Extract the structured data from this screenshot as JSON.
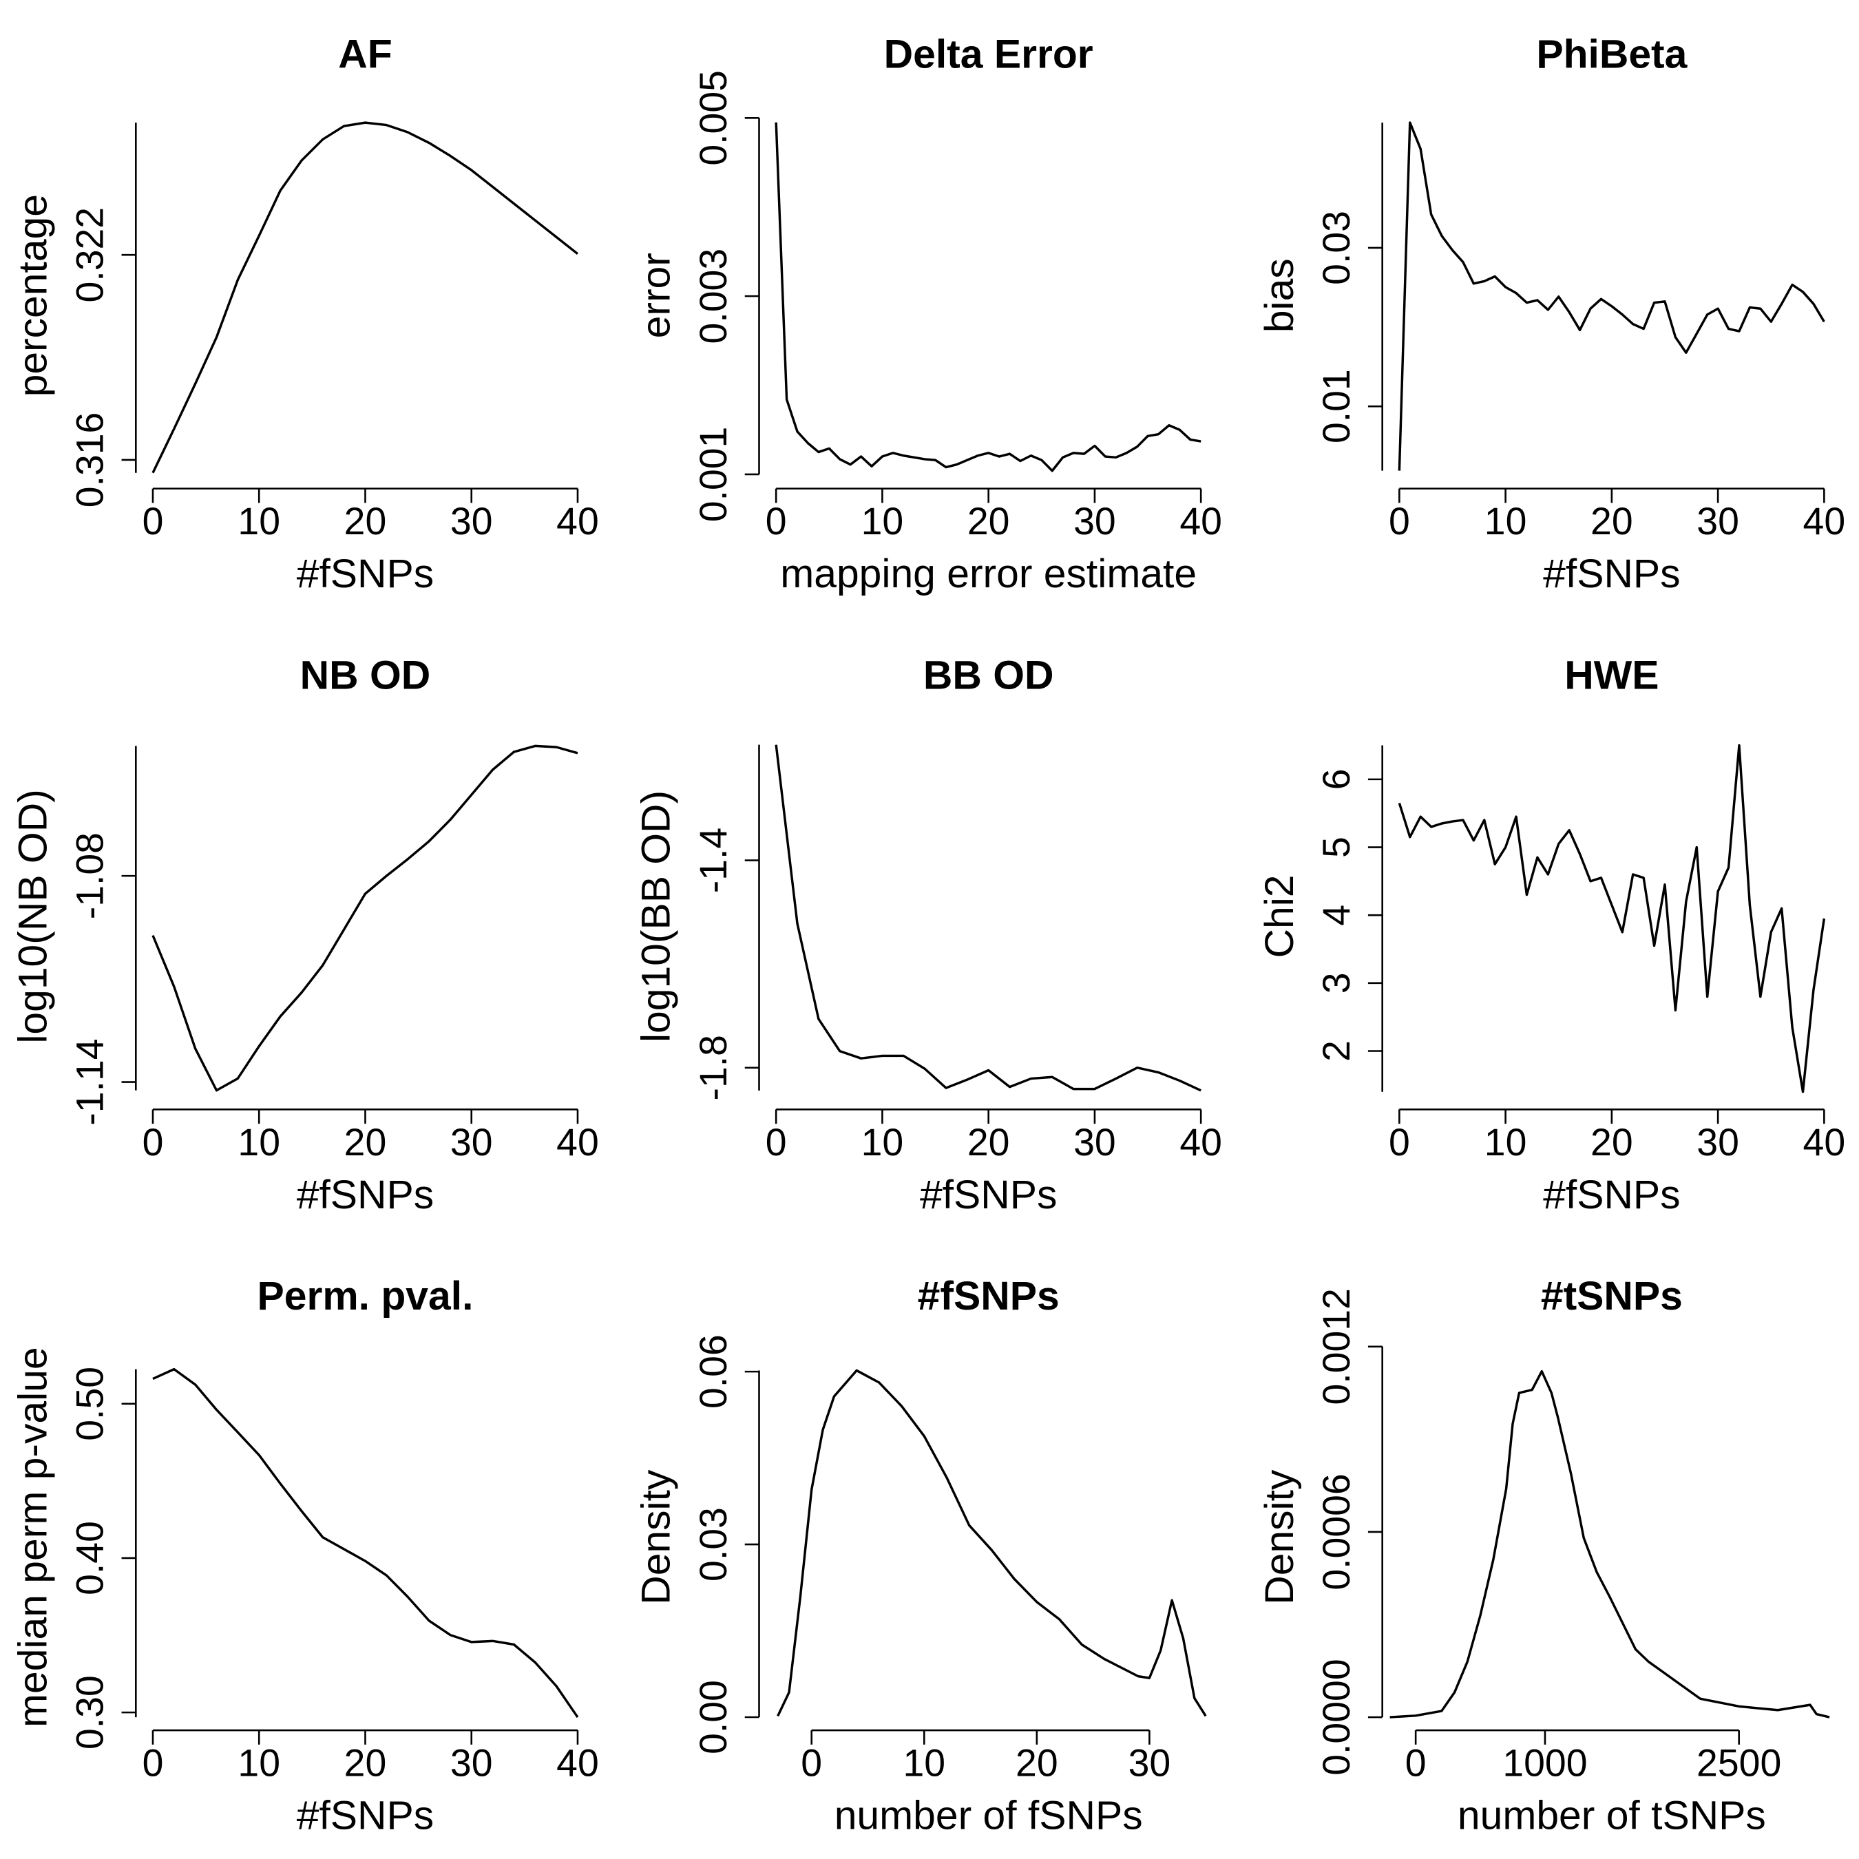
{
  "chart_data": [
    {
      "type": "line",
      "title": "AF",
      "x_label": "#fSNPs",
      "y_label": "percentage",
      "color": "#000000",
      "x": [
        0,
        2,
        4,
        6,
        8,
        10,
        12,
        14,
        16,
        18,
        20,
        22,
        24,
        26,
        28,
        30,
        32,
        34,
        36,
        38,
        40
      ],
      "values": [
        0.31562,
        0.31691,
        0.31823,
        0.31959,
        0.32127,
        0.32256,
        0.32388,
        0.32476,
        0.32538,
        0.32577,
        0.32587,
        0.3258,
        0.32559,
        0.32528,
        0.3249,
        0.32448,
        0.32399,
        0.3235,
        0.32301,
        0.32252,
        0.32203
      ],
      "xlim": [
        -1.6,
        41.6
      ],
      "ylim": [
        0.31516,
        0.32646
      ],
      "xticks": [
        0,
        10,
        20,
        30,
        40
      ],
      "yticks": [
        0.316,
        0.322
      ]
    },
    {
      "type": "line",
      "title": "Delta Error",
      "x_label": "mapping error estimate",
      "y_label": "error",
      "color": "#000000",
      "x": [
        0,
        1,
        2,
        3,
        4,
        5,
        6,
        7,
        8,
        9,
        10,
        11,
        12,
        13,
        14,
        15,
        16,
        17,
        18,
        19,
        20,
        21,
        22,
        23,
        24,
        25,
        26,
        27,
        28,
        29,
        30,
        31,
        32,
        33,
        34,
        35,
        36,
        37,
        38,
        39,
        40
      ],
      "values": [
        0.00495,
        0.00184,
        0.00148,
        0.00135,
        0.00125,
        0.00129,
        0.00117,
        0.00111,
        0.0012,
        0.00109,
        0.0012,
        0.00124,
        0.00121,
        0.00119,
        0.00117,
        0.00116,
        0.00108,
        0.00111,
        0.00116,
        0.00121,
        0.00124,
        0.0012,
        0.00123,
        0.00115,
        0.00121,
        0.00116,
        0.00104,
        0.00119,
        0.00124,
        0.00123,
        0.00132,
        0.0012,
        0.00119,
        0.00124,
        0.00131,
        0.00143,
        0.00145,
        0.00155,
        0.0015,
        0.00139,
        0.00137
      ],
      "xlim": [
        -1.6,
        41.6
      ],
      "ylim": [
        0.00084,
        0.005174
      ],
      "xticks": [
        0,
        10,
        20,
        30,
        40
      ],
      "yticks": [
        0.001,
        0.003,
        0.005
      ]
    },
    {
      "type": "line",
      "title": "PhiBeta",
      "x_label": "#fSNPs",
      "y_label": "bias",
      "color": "#000000",
      "x": [
        0,
        1,
        2,
        3,
        4,
        5,
        6,
        7,
        8,
        9,
        10,
        11,
        12,
        13,
        14,
        15,
        16,
        17,
        18,
        19,
        20,
        21,
        22,
        23,
        24,
        25,
        26,
        27,
        28,
        29,
        30,
        31,
        32,
        33,
        34,
        35,
        36,
        37,
        38,
        39,
        40
      ],
      "values": [
        0.00188,
        0.0458,
        0.04248,
        0.03421,
        0.0315,
        0.0297,
        0.0282,
        0.02549,
        0.02579,
        0.02639,
        0.02504,
        0.02429,
        0.02308,
        0.02339,
        0.02218,
        0.02384,
        0.02188,
        0.01963,
        0.02233,
        0.02354,
        0.02263,
        0.02158,
        0.02038,
        0.01978,
        0.02308,
        0.02323,
        0.01872,
        0.01677,
        0.01917,
        0.02158,
        0.02233,
        0.01978,
        0.01948,
        0.02248,
        0.02233,
        0.02068,
        0.02293,
        0.02534,
        0.02444,
        0.02293,
        0.02068
      ],
      "xlim": [
        -1.6,
        41.6
      ],
      "ylim": [
        -0.00038,
        0.04834
      ],
      "xticks": [
        0,
        10,
        20,
        30,
        40
      ],
      "yticks": [
        0.01,
        0.03
      ]
    },
    {
      "type": "line",
      "title": "NB OD",
      "x_label": "#fSNPs",
      "y_label": "log10(NB OD)",
      "color": "#000000",
      "x": [
        0,
        2,
        4,
        6,
        8,
        10,
        12,
        14,
        16,
        18,
        20,
        22,
        24,
        26,
        28,
        30,
        32,
        34,
        36,
        38,
        40
      ],
      "values": [
        -1.09733,
        -1.11225,
        -1.13029,
        -1.14243,
        -1.13896,
        -1.12959,
        -1.12092,
        -1.11398,
        -1.10601,
        -1.0956,
        -1.08519,
        -1.08,
        -1.07513,
        -1.06993,
        -1.06368,
        -1.0564,
        -1.04911,
        -1.04391,
        -1.04218,
        -1.04252,
        -1.04426
      ],
      "xlim": [
        -1.6,
        41.6
      ],
      "ylim": [
        -1.14798,
        -1.0356
      ],
      "xticks": [
        0,
        10,
        20,
        30,
        40
      ],
      "yticks": [
        -1.14,
        -1.08
      ]
    },
    {
      "type": "line",
      "title": "BB OD",
      "x_label": "#fSNPs",
      "y_label": "log10(BB OD)",
      "color": "#000000",
      "x": [
        0,
        2,
        4,
        6,
        8,
        10,
        12,
        14,
        16,
        18,
        20,
        22,
        24,
        26,
        28,
        30,
        32,
        34,
        36,
        38,
        40
      ],
      "values": [
        -1.177,
        -1.522,
        -1.706,
        -1.768,
        -1.782,
        -1.777,
        -1.777,
        -1.802,
        -1.839,
        -1.823,
        -1.805,
        -1.837,
        -1.821,
        -1.818,
        -1.841,
        -1.841,
        -1.821,
        -1.8,
        -1.809,
        -1.825,
        -1.844
      ],
      "xlim": [
        -1.6,
        41.6
      ],
      "ylim": [
        -1.8805,
        -1.1357
      ],
      "xticks": [
        0,
        10,
        20,
        30,
        40
      ],
      "yticks": [
        -1.8,
        -1.4
      ]
    },
    {
      "type": "line",
      "title": "HWE",
      "x_label": "#fSNPs",
      "y_label": "Chi2",
      "color": "#000000",
      "x": [
        0,
        1,
        2,
        3,
        4,
        5,
        6,
        7,
        8,
        9,
        10,
        11,
        12,
        13,
        14,
        15,
        16,
        17,
        18,
        19,
        20,
        21,
        22,
        23,
        24,
        25,
        26,
        27,
        28,
        29,
        30,
        31,
        32,
        33,
        34,
        35,
        36,
        37,
        38,
        39,
        40
      ],
      "values": [
        5.65,
        5.15,
        5.45,
        5.3,
        5.35,
        5.38,
        5.4,
        5.1,
        5.4,
        4.75,
        5.0,
        5.45,
        4.3,
        4.85,
        4.6,
        5.05,
        5.25,
        4.9,
        4.5,
        4.55,
        4.15,
        3.75,
        4.6,
        4.55,
        3.55,
        4.45,
        2.6,
        4.2,
        5.0,
        2.8,
        4.35,
        4.7,
        6.5,
        4.15,
        2.8,
        3.75,
        4.1,
        2.35,
        1.4,
        2.9,
        3.95
      ],
      "xlim": [
        -1.6,
        41.6
      ],
      "ylim": [
        1.14,
        6.824
      ],
      "xticks": [
        0,
        10,
        20,
        30,
        40
      ],
      "yticks": [
        2,
        3,
        4,
        5,
        6
      ]
    },
    {
      "type": "line",
      "title": "Perm. pval.",
      "x_label": "#fSNPs",
      "y_label": "median perm p-value",
      "color": "#000000",
      "x": [
        0,
        2,
        4,
        6,
        8,
        10,
        12,
        14,
        16,
        18,
        20,
        22,
        24,
        26,
        28,
        30,
        32,
        34,
        36,
        38,
        40
      ],
      "values": [
        0.5162,
        0.5224,
        0.5124,
        0.4961,
        0.4815,
        0.4668,
        0.4483,
        0.4305,
        0.4135,
        0.4058,
        0.3981,
        0.3888,
        0.3749,
        0.3595,
        0.3502,
        0.3456,
        0.3463,
        0.344,
        0.3324,
        0.317,
        0.2969
      ],
      "xlim": [
        -1.6,
        41.6
      ],
      "ylim": [
        0.28842,
        0.53861
      ],
      "xticks": [
        0,
        10,
        20,
        30,
        40
      ],
      "yticks": [
        {
          "value": 0.3,
          "label": "0.30"
        },
        {
          "value": 0.4,
          "label": "0.40"
        },
        {
          "value": 0.5,
          "label": "0.50"
        }
      ]
    },
    {
      "type": "line",
      "title": "#fSNPs",
      "x_label": "number of fSNPs",
      "y_label": "Density",
      "color": "#000000",
      "x": [
        -3,
        -2,
        -1,
        0,
        1,
        2,
        4,
        6,
        8,
        10,
        12,
        14,
        16,
        18,
        20,
        22,
        24,
        26,
        28,
        29,
        30,
        31,
        32,
        33,
        34,
        35
      ],
      "values": [
        0.0002,
        0.0043,
        0.0209,
        0.0395,
        0.0499,
        0.0557,
        0.0602,
        0.0581,
        0.054,
        0.0488,
        0.0416,
        0.0333,
        0.029,
        0.024,
        0.02,
        0.017,
        0.0126,
        0.0101,
        0.0081,
        0.0071,
        0.0068,
        0.0116,
        0.0203,
        0.0137,
        0.0033,
        0.0002
      ],
      "xlim": [
        -4.66,
        36.08
      ],
      "ylim": [
        -0.00228,
        0.06476
      ],
      "xticks": [
        0,
        10,
        20,
        30
      ],
      "yticks": [
        {
          "value": 0,
          "label": "0.00"
        },
        0.03,
        0.06
      ]
    },
    {
      "type": "line",
      "title": "#tSNPs",
      "x_label": "number of tSNPs",
      "y_label": "Density",
      "color": "#000000",
      "x": [
        -200,
        0,
        200,
        300,
        400,
        500,
        600,
        700,
        750,
        800,
        900,
        975,
        1050,
        1100,
        1200,
        1300,
        1400,
        1500,
        1700,
        1800,
        2000,
        2200,
        2500,
        2800,
        3050,
        3100,
        3200
      ],
      "values": [
        0,
        5e-06,
        2e-05,
        8e-05,
        0.00018,
        0.00033,
        0.00051,
        0.00074,
        0.00095,
        0.00105,
        0.00106,
        0.00112,
        0.00105,
        0.00097,
        0.00079,
        0.00058,
        0.00047,
        0.00039,
        0.00022,
        0.00018,
        0.00012,
        6e-05,
        3.5e-05,
        2.3e-05,
        4e-05,
        1e-05,
        0
      ],
      "xlim": [
        -258,
        3290
      ],
      "ylim": [
        -4.24e-05,
        0.0012078
      ],
      "xticks": [
        0,
        1000,
        2500
      ],
      "yticks": [
        {
          "value": 0,
          "label": "0.0000"
        },
        {
          "value": 0.0006,
          "label": "0.0006"
        },
        {
          "value": 0.0012,
          "label": "0.0012"
        }
      ]
    }
  ]
}
